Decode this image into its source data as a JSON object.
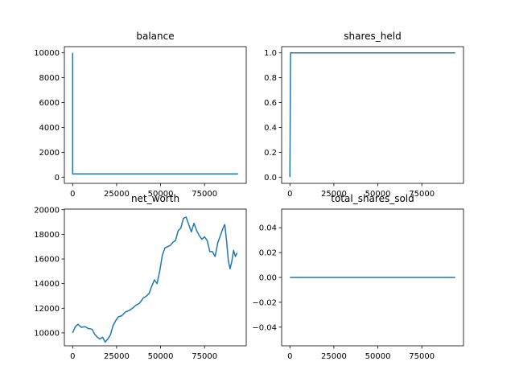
{
  "figure": {
    "background": "#ffffff",
    "line_color": "#1f77b4"
  },
  "chart_data": [
    {
      "type": "line",
      "title": "balance",
      "xlim": [
        -4700,
        98700
      ],
      "ylim": [
        -500,
        10500
      ],
      "xticks": [
        0,
        25000,
        50000,
        75000
      ],
      "xtick_labels": [
        "0",
        "25000",
        "50000",
        "75000"
      ],
      "yticks": [
        0,
        2000,
        4000,
        6000,
        8000,
        10000
      ],
      "ytick_labels": [
        "0",
        "2000",
        "4000",
        "6000",
        "8000",
        "10000"
      ],
      "series": [
        {
          "x": [
            0,
            0,
            400,
            94000
          ],
          "y": [
            10000,
            260,
            260,
            260
          ]
        }
      ]
    },
    {
      "type": "line",
      "title": "shares_held",
      "xlim": [
        -4700,
        98700
      ],
      "ylim": [
        -0.05,
        1.05
      ],
      "xticks": [
        0,
        25000,
        50000,
        75000
      ],
      "xtick_labels": [
        "0",
        "25000",
        "50000",
        "75000"
      ],
      "yticks": [
        0,
        0.2,
        0.4,
        0.6,
        0.8,
        1.0
      ],
      "ytick_labels": [
        "0.0",
        "0.2",
        "0.4",
        "0.6",
        "0.8",
        "1.0"
      ],
      "series": [
        {
          "x": [
            0,
            350,
            700,
            94000
          ],
          "y": [
            0,
            1,
            1,
            1
          ]
        }
      ]
    },
    {
      "type": "line",
      "title": "net_worth",
      "xlim": [
        -4700,
        98700
      ],
      "ylim": [
        8950,
        20050
      ],
      "xticks": [
        0,
        25000,
        50000,
        75000
      ],
      "xtick_labels": [
        "0",
        "25000",
        "50000",
        "75000"
      ],
      "yticks": [
        10000,
        12000,
        14000,
        16000,
        18000,
        20000
      ],
      "ytick_labels": [
        "10000",
        "12000",
        "14000",
        "16000",
        "18000",
        "20000"
      ],
      "series": [
        {
          "x": [
            0,
            1500,
            3000,
            5000,
            7000,
            9000,
            11000,
            12500,
            14000,
            15500,
            17000,
            18500,
            20000,
            21500,
            23000,
            24500,
            26000,
            28000,
            30000,
            32000,
            34000,
            36000,
            38000,
            40000,
            42000,
            43500,
            45000,
            46500,
            48000,
            49500,
            51000,
            52500,
            54000,
            55500,
            57000,
            58500,
            60000,
            61500,
            63000,
            64500,
            66000,
            67500,
            69000,
            70500,
            72000,
            73500,
            75000,
            76500,
            78000,
            79500,
            81000,
            82500,
            84000,
            85500,
            86500,
            87500,
            88500,
            89500,
            90500,
            91500,
            92500,
            93500
          ],
          "y": [
            10000,
            10500,
            10700,
            10450,
            10500,
            10350,
            10300,
            9900,
            9650,
            9500,
            9650,
            9250,
            9500,
            9850,
            10600,
            11000,
            11300,
            11400,
            11700,
            11800,
            12000,
            12250,
            12400,
            12800,
            13000,
            13200,
            13800,
            14300,
            14000,
            15000,
            16300,
            16900,
            17000,
            17100,
            17350,
            17500,
            18300,
            18500,
            19300,
            19400,
            18800,
            18200,
            18900,
            18300,
            17900,
            17600,
            17800,
            17500,
            16600,
            16600,
            16200,
            17300,
            17900,
            18500,
            18800,
            17500,
            15900,
            15200,
            15800,
            16700,
            16200,
            16500
          ]
        }
      ]
    },
    {
      "type": "line",
      "title": "total_shares_sold",
      "xlim": [
        -4700,
        98700
      ],
      "ylim": [
        -0.055,
        0.055
      ],
      "xticks": [
        0,
        25000,
        50000,
        75000
      ],
      "xtick_labels": [
        "0",
        "25000",
        "50000",
        "75000"
      ],
      "yticks": [
        -0.04,
        -0.02,
        0.0,
        0.02,
        0.04
      ],
      "ytick_labels": [
        "−0.04",
        "−0.02",
        "0.00",
        "0.02",
        "0.04"
      ],
      "series": [
        {
          "x": [
            0,
            94000
          ],
          "y": [
            0,
            0
          ]
        }
      ]
    }
  ]
}
